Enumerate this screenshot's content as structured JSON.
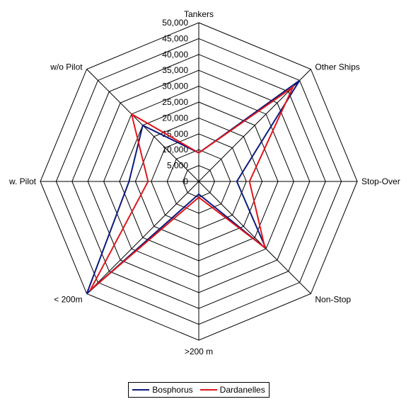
{
  "chart_data": {
    "type": "radar",
    "categories": [
      "Tankers",
      "Other Ships",
      "Stop-Over",
      "Non-Stop",
      ">200 m",
      "< 200m",
      "w. Pilot",
      "w/o Pilot"
    ],
    "ticks": [
      "0",
      "5,000",
      "10,000",
      "15,000",
      "20,000",
      "25,000",
      "30,000",
      "35,000",
      "40,000",
      "45,000",
      "50,000"
    ],
    "tick_values": [
      0,
      5000,
      10000,
      15000,
      20000,
      25000,
      30000,
      35000,
      40000,
      45000,
      50000
    ],
    "rmax": 50000,
    "grid": true,
    "legend_position": "bottom",
    "series": [
      {
        "name": "Bosphorus",
        "color": "#0c1a7a",
        "values": [
          9000,
          45000,
          12000,
          30000,
          4000,
          50000,
          22000,
          25000
        ]
      },
      {
        "name": "Dardanelles",
        "color": "#e0161b",
        "values": [
          9000,
          42000,
          16000,
          29500,
          5000,
          48500,
          16000,
          30000
        ]
      }
    ]
  }
}
